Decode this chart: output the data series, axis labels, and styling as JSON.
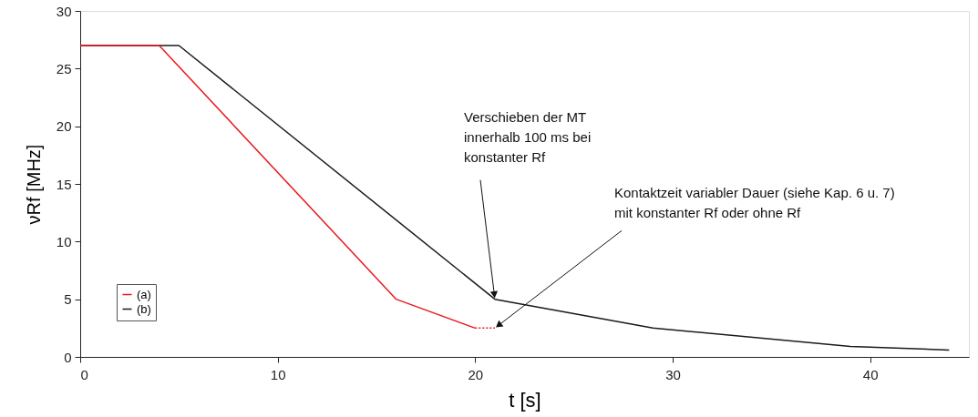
{
  "chart_data": {
    "type": "line",
    "xlabel": "t [s]",
    "ylabel": "νRf [MHz]",
    "xlim": [
      0,
      45
    ],
    "xticks": [
      0,
      10,
      20,
      30,
      40
    ],
    "ylim": [
      0,
      30
    ],
    "yticks": [
      0,
      5,
      10,
      15,
      20,
      25,
      30
    ],
    "grid": false,
    "legend": "bottom left",
    "marker": "none",
    "series": [
      {
        "name": "(a)",
        "color": "#e8191f",
        "line_style": "solid",
        "x": [
          0,
          4,
          16,
          20
        ],
        "values": [
          27,
          27,
          5,
          2.5
        ]
      },
      {
        "name": "(b)",
        "color": "#1a1a1a",
        "line_style": "solid",
        "x": [
          0,
          5,
          21,
          29,
          39,
          44
        ],
        "values": [
          27,
          27,
          5,
          2.5,
          0.9,
          0.6
        ]
      },
      {
        "color": "#e8191f",
        "line_style": "dotted",
        "x": [
          20,
          21
        ],
        "values": [
          2.5,
          2.5
        ]
      }
    ],
    "annotations": [
      {
        "text": "Verschieben der MT\ninnerhalb 100 ms bei\nkonstanter Rf",
        "x": 21,
        "y": 5
      },
      {
        "text": "Kontaktzeit variabler Dauer (siehe Kap. 6 u. 7)\nmit konstanter Rf oder ohne Rf",
        "x": 21,
        "y": 2.5
      }
    ]
  }
}
